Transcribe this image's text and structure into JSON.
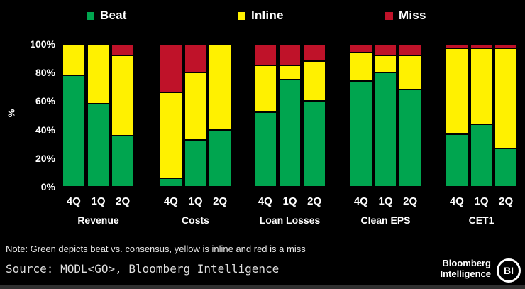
{
  "legend": [
    {
      "label": "Beat",
      "color": "#00a54f"
    },
    {
      "label": "Inline",
      "color": "#fff100"
    },
    {
      "label": "Miss",
      "color": "#bf1229"
    }
  ],
  "colors": {
    "beat": "#00a54f",
    "inline": "#fff100",
    "miss": "#bf1229",
    "background": "#000000"
  },
  "chart_data": {
    "type": "bar",
    "stacked": true,
    "ylabel": "%",
    "ylim": [
      0,
      100
    ],
    "yticks": [
      "0%",
      "20%",
      "40%",
      "60%",
      "80%",
      "100%"
    ],
    "categories": [
      "4Q",
      "1Q",
      "2Q"
    ],
    "legend_position": "top",
    "grid": false,
    "groups": [
      {
        "label": "Revenue",
        "series": [
          {
            "name": "Beat",
            "values": [
              78,
              58,
              36
            ]
          },
          {
            "name": "Inline",
            "values": [
              22,
              42,
              56
            ]
          },
          {
            "name": "Miss",
            "values": [
              0,
              0,
              8
            ]
          }
        ]
      },
      {
        "label": "Costs",
        "series": [
          {
            "name": "Beat",
            "values": [
              6,
              33,
              40
            ]
          },
          {
            "name": "Inline",
            "values": [
              60,
              47,
              60
            ]
          },
          {
            "name": "Miss",
            "values": [
              34,
              20,
              0
            ]
          }
        ]
      },
      {
        "label": "Loan Losses",
        "series": [
          {
            "name": "Beat",
            "values": [
              52,
              75,
              60
            ]
          },
          {
            "name": "Inline",
            "values": [
              33,
              10,
              28
            ]
          },
          {
            "name": "Miss",
            "values": [
              15,
              15,
              12
            ]
          }
        ]
      },
      {
        "label": "Clean EPS",
        "series": [
          {
            "name": "Beat",
            "values": [
              74,
              80,
              68
            ]
          },
          {
            "name": "Inline",
            "values": [
              20,
              12,
              24
            ]
          },
          {
            "name": "Miss",
            "values": [
              6,
              8,
              8
            ]
          }
        ]
      },
      {
        "label": "CET1",
        "series": [
          {
            "name": "Beat",
            "values": [
              37,
              44,
              27
            ]
          },
          {
            "name": "Inline",
            "values": [
              60,
              53,
              70
            ]
          },
          {
            "name": "Miss",
            "values": [
              3,
              3,
              3
            ]
          }
        ]
      }
    ]
  },
  "note": "Note: Green depicts beat vs. consensus, yellow is inline and red is a miss",
  "source": "Source: MODL<GO>, Bloomberg Intelligence",
  "branding": {
    "line1": "Bloomberg",
    "line2": "Intelligence",
    "badge": "BI"
  }
}
